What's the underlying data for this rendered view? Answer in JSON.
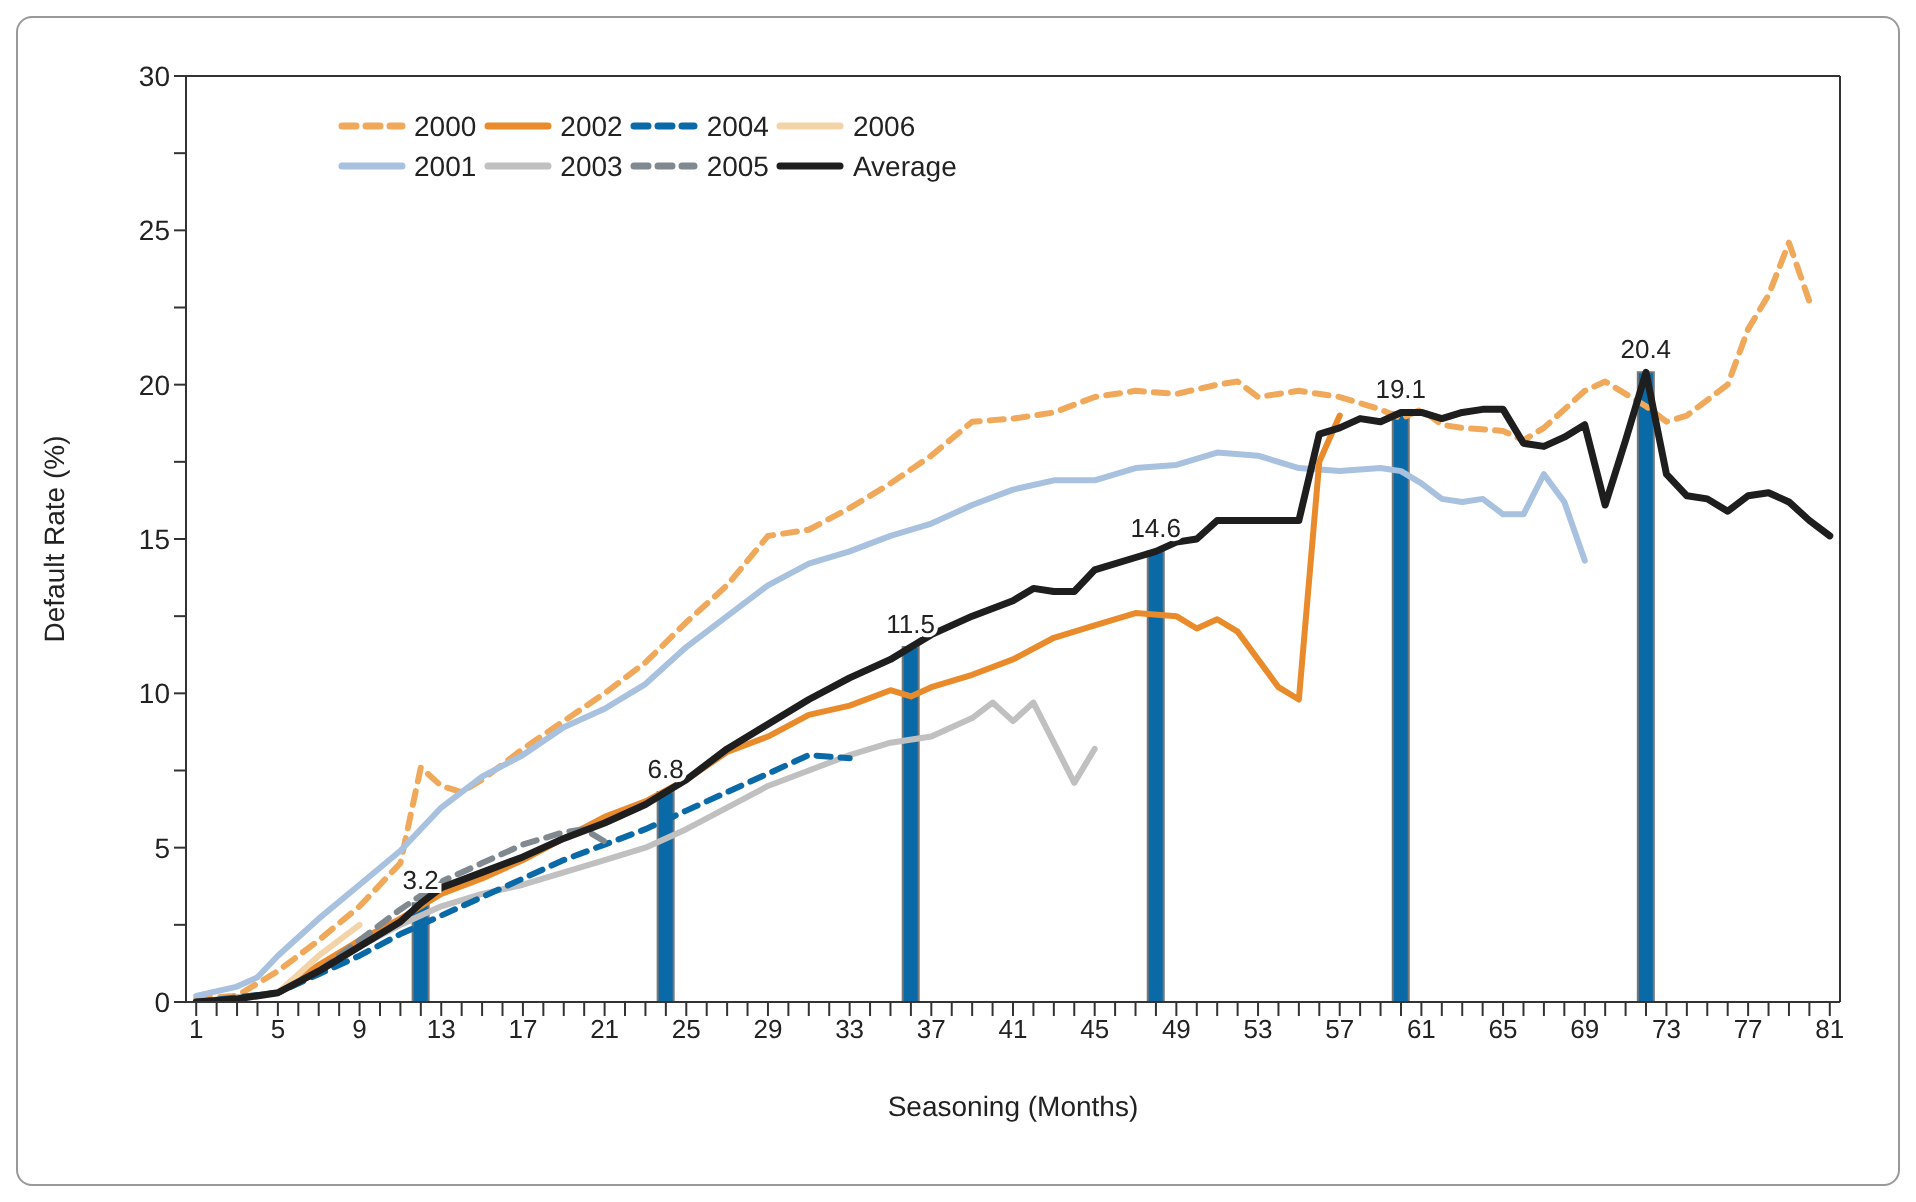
{
  "chart_data": {
    "type": "line",
    "xlabel": "Seasoning (Months)",
    "ylabel": "Default Rate (%)",
    "xlim": [
      0.5,
      81.5
    ],
    "ylim": [
      0,
      30
    ],
    "xticks": [
      1,
      {
        "value": 2,
        "label": null
      },
      {
        "value": 3,
        "label": null
      },
      {
        "value": 4,
        "label": null
      },
      5,
      {
        "value": 6,
        "label": null
      },
      {
        "value": 7,
        "label": null
      },
      {
        "value": 8,
        "label": null
      },
      9,
      {
        "value": 10,
        "label": null
      },
      {
        "value": 11,
        "label": null
      },
      {
        "value": 12,
        "label": null
      },
      13,
      {
        "value": 14,
        "label": null
      },
      {
        "value": 15,
        "label": null
      },
      {
        "value": 16,
        "label": null
      },
      17,
      {
        "value": 18,
        "label": null
      },
      {
        "value": 19,
        "label": null
      },
      {
        "value": 20,
        "label": null
      },
      21,
      {
        "value": 22,
        "label": null
      },
      {
        "value": 23,
        "label": null
      },
      {
        "value": 24,
        "label": null
      },
      25,
      {
        "value": 26,
        "label": null
      },
      {
        "value": 27,
        "label": null
      },
      {
        "value": 28,
        "label": null
      },
      29,
      {
        "value": 30,
        "label": null
      },
      {
        "value": 31,
        "label": null
      },
      {
        "value": 32,
        "label": null
      },
      33,
      {
        "value": 34,
        "label": null
      },
      {
        "value": 35,
        "label": null
      },
      {
        "value": 36,
        "label": null
      },
      37,
      {
        "value": 38,
        "label": null
      },
      {
        "value": 39,
        "label": null
      },
      {
        "value": 40,
        "label": null
      },
      41,
      {
        "value": 42,
        "label": null
      },
      {
        "value": 43,
        "label": null
      },
      {
        "value": 44,
        "label": null
      },
      45,
      {
        "value": 46,
        "label": null
      },
      {
        "value": 47,
        "label": null
      },
      {
        "value": 48,
        "label": null
      },
      49,
      {
        "value": 50,
        "label": null
      },
      {
        "value": 51,
        "label": null
      },
      {
        "value": 52,
        "label": null
      },
      53,
      {
        "value": 54,
        "label": null
      },
      {
        "value": 55,
        "label": null
      },
      {
        "value": 56,
        "label": null
      },
      57,
      {
        "value": 58,
        "label": null
      },
      {
        "value": 59,
        "label": null
      },
      {
        "value": 60,
        "label": null
      },
      61,
      {
        "value": 62,
        "label": null
      },
      {
        "value": 63,
        "label": null
      },
      {
        "value": 64,
        "label": null
      },
      65,
      {
        "value": 66,
        "label": null
      },
      {
        "value": 67,
        "label": null
      },
      {
        "value": 68,
        "label": null
      },
      69,
      {
        "value": 70,
        "label": null
      },
      {
        "value": 71,
        "label": null
      },
      {
        "value": 72,
        "label": null
      },
      73,
      {
        "value": 74,
        "label": null
      },
      {
        "value": 75,
        "label": null
      },
      {
        "value": 76,
        "label": null
      },
      77,
      {
        "value": 78,
        "label": null
      },
      {
        "value": 79,
        "label": null
      },
      {
        "value": 80,
        "label": null
      },
      81
    ],
    "yticks": [
      0,
      {
        "value": 2.5,
        "label": null
      },
      5,
      {
        "value": 7.5,
        "label": null
      },
      10,
      {
        "value": 12.5,
        "label": null
      },
      15,
      {
        "value": 17.5,
        "label": null
      },
      20,
      {
        "value": 22.5,
        "label": null
      },
      25,
      {
        "value": 27.5,
        "label": null
      },
      30
    ],
    "legend": "top left",
    "grid": false,
    "series": [
      {
        "type": "bar",
        "color": "#0a6aa8",
        "x": [
          12,
          24,
          36,
          48,
          60,
          72
        ],
        "values": [
          3.2,
          6.8,
          11.5,
          14.6,
          19.1,
          20.4
        ],
        "value_labels": [
          "3.2",
          "6.8",
          "11.5",
          "14.6",
          "19.1",
          "20.4"
        ]
      },
      {
        "name": "2000",
        "color": "#f0a95a",
        "line_style": "dashed",
        "x": [
          1,
          3,
          5,
          7,
          9,
          11,
          12,
          13,
          14,
          15,
          17,
          19,
          21,
          23,
          25,
          27,
          29,
          31,
          33,
          35,
          37,
          39,
          41,
          43,
          45,
          47,
          49,
          51,
          52,
          53,
          55,
          57,
          59,
          60,
          61,
          62,
          63,
          65,
          66,
          67,
          69,
          70,
          71,
          72,
          73,
          74,
          75,
          76,
          77,
          78,
          79,
          80
        ],
        "values": [
          0.1,
          0.2,
          1,
          2,
          3.1,
          4.5,
          7.6,
          7,
          6.8,
          7.2,
          8.2,
          9.1,
          10,
          11,
          12.3,
          13.5,
          15.1,
          15.3,
          16,
          16.8,
          17.7,
          18.8,
          18.9,
          19.1,
          19.6,
          19.8,
          19.7,
          20,
          20.1,
          19.6,
          19.8,
          19.6,
          19.2,
          18.9,
          19.2,
          18.7,
          18.6,
          18.5,
          18.2,
          18.6,
          19.8,
          20.1,
          19.7,
          19.3,
          18.8,
          19,
          19.5,
          20,
          21.8,
          22.9,
          24.6,
          22.7
        ]
      },
      {
        "name": "2001",
        "color": "#a7c1de",
        "line_style": "solid",
        "x": [
          1,
          3,
          4,
          5,
          7,
          9,
          11,
          13,
          15,
          17,
          19,
          21,
          23,
          25,
          27,
          29,
          31,
          33,
          35,
          37,
          39,
          41,
          43,
          45,
          47,
          49,
          51,
          53,
          55,
          57,
          59,
          60,
          61,
          62,
          63,
          64,
          65,
          66,
          67,
          68,
          69
        ],
        "values": [
          0.2,
          0.5,
          0.8,
          1.5,
          2.7,
          3.8,
          4.9,
          6.3,
          7.3,
          8,
          8.9,
          9.5,
          10.3,
          11.5,
          12.5,
          13.5,
          14.2,
          14.6,
          15.1,
          15.5,
          16.1,
          16.6,
          16.9,
          16.9,
          17.3,
          17.4,
          17.8,
          17.7,
          17.3,
          17.2,
          17.3,
          17.2,
          16.8,
          16.3,
          16.2,
          16.3,
          15.8,
          15.8,
          17.1,
          16.2,
          14.3
        ]
      },
      {
        "name": "2002",
        "color": "#e98b2a",
        "line_style": "solid",
        "x": [
          1,
          5,
          7,
          9,
          11,
          13,
          15,
          17,
          19,
          21,
          23,
          25,
          27,
          29,
          31,
          33,
          35,
          36,
          37,
          39,
          41,
          43,
          45,
          47,
          49,
          50,
          51,
          52,
          53,
          54,
          55,
          56,
          57
        ],
        "values": [
          0,
          0.3,
          1.2,
          2,
          2.7,
          3.5,
          4,
          4.6,
          5.3,
          6,
          6.5,
          7.2,
          8.1,
          8.6,
          9.3,
          9.6,
          10.1,
          9.9,
          10.2,
          10.6,
          11.1,
          11.8,
          12.2,
          12.6,
          12.5,
          12.1,
          12.4,
          12,
          11.1,
          10.2,
          9.8,
          17.5,
          19
        ]
      },
      {
        "name": "2003",
        "color": "#c0c0c0",
        "line_style": "solid",
        "x": [
          1,
          5,
          7,
          9,
          11,
          13,
          15,
          17,
          19,
          21,
          23,
          24,
          25,
          27,
          29,
          31,
          33,
          35,
          37,
          39,
          40,
          41,
          42,
          43,
          44,
          45
        ],
        "values": [
          0,
          0.3,
          1,
          1.8,
          2.5,
          3.1,
          3.5,
          3.8,
          4.2,
          4.6,
          5,
          5.3,
          5.6,
          6.3,
          7,
          7.5,
          8,
          8.4,
          8.6,
          9.2,
          9.7,
          9.1,
          9.7,
          8.4,
          7.1,
          8.2
        ]
      },
      {
        "name": "2004",
        "color": "#0a6aa8",
        "line_style": "dashed",
        "x": [
          1,
          5,
          7,
          9,
          11,
          13,
          15,
          17,
          19,
          21,
          23,
          25,
          27,
          29,
          31,
          33
        ],
        "values": [
          0,
          0.3,
          0.9,
          1.5,
          2.2,
          2.8,
          3.4,
          4,
          4.6,
          5.1,
          5.6,
          6.2,
          6.8,
          7.4,
          8,
          7.9
        ]
      },
      {
        "name": "2005",
        "color": "#808890",
        "line_style": "dashed",
        "x": [
          5,
          7,
          9,
          11,
          13,
          15,
          17,
          19,
          20,
          21
        ],
        "values": [
          0.3,
          1,
          2,
          3,
          3.9,
          4.5,
          5.1,
          5.5,
          5.6,
          5.2
        ]
      },
      {
        "name": "2006",
        "color": "#f3d3a8",
        "line_style": "solid",
        "x": [
          5,
          7,
          9
        ],
        "values": [
          0.3,
          1.5,
          2.5
        ]
      },
      {
        "name": "Average",
        "color": "#1e1e1e",
        "line_style": "solid",
        "x": [
          1,
          3,
          5,
          7,
          9,
          11,
          12,
          13,
          15,
          17,
          19,
          21,
          23,
          24,
          25,
          27,
          29,
          31,
          33,
          35,
          36,
          37,
          39,
          41,
          42,
          43,
          44,
          45,
          47,
          48,
          49,
          50,
          51,
          53,
          55,
          56,
          57,
          58,
          59,
          60,
          61,
          62,
          63,
          64,
          65,
          66,
          67,
          68,
          69,
          70,
          71,
          72,
          73,
          74,
          75,
          76,
          77,
          78,
          79,
          80,
          81
        ],
        "values": [
          0,
          0.1,
          0.3,
          1,
          1.8,
          2.6,
          3.2,
          3.7,
          4.2,
          4.7,
          5.3,
          5.8,
          6.4,
          6.8,
          7.2,
          8.2,
          9,
          9.8,
          10.5,
          11.1,
          11.5,
          11.9,
          12.5,
          13,
          13.4,
          13.3,
          13.3,
          14,
          14.4,
          14.6,
          14.9,
          15,
          15.6,
          15.6,
          15.6,
          18.4,
          18.6,
          18.9,
          18.8,
          19.1,
          19.1,
          18.9,
          19.1,
          19.2,
          19.2,
          18.1,
          18,
          18.3,
          18.7,
          16.1,
          18.2,
          20.4,
          17.1,
          16.4,
          16.3,
          15.9,
          16.4,
          16.5,
          16.2,
          15.6,
          15.1
        ]
      }
    ]
  }
}
